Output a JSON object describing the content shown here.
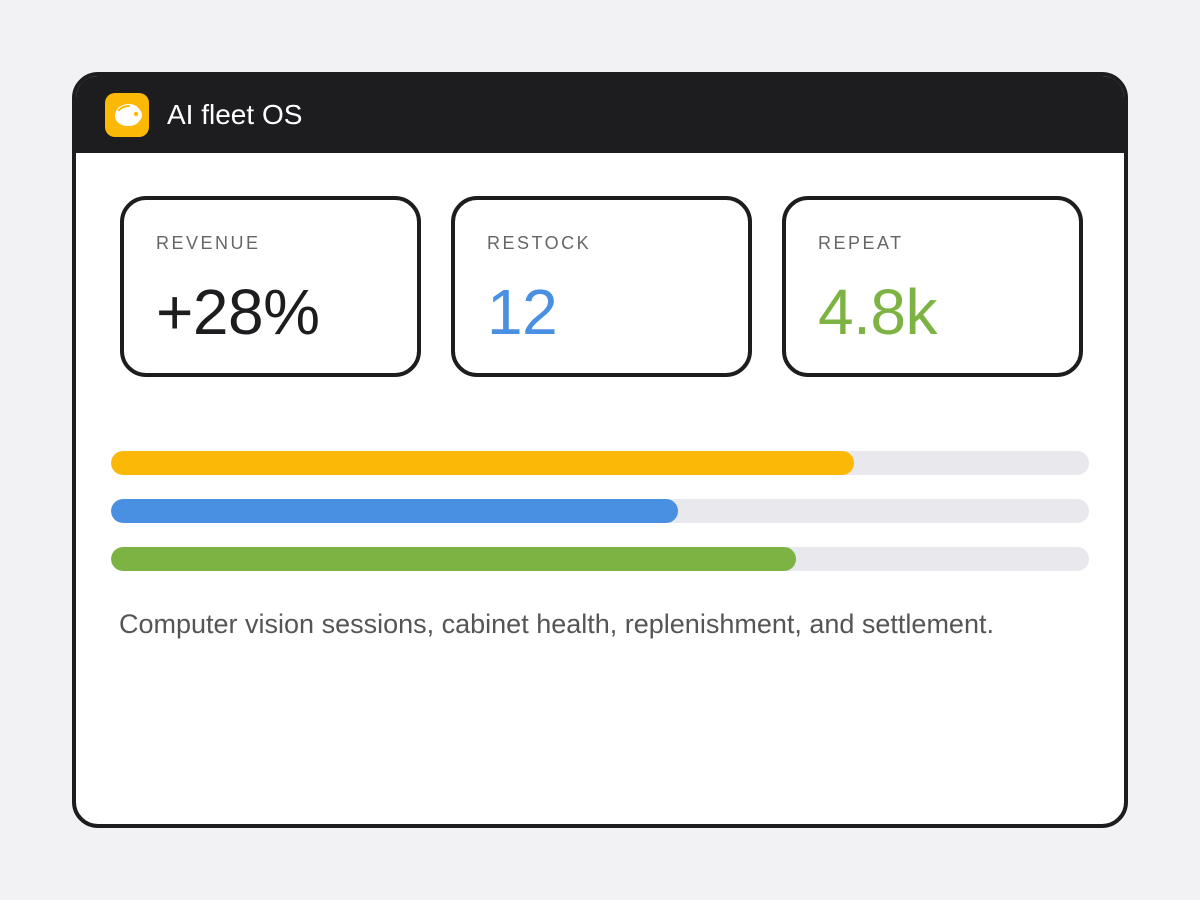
{
  "app": {
    "title": "AI fleet OS",
    "logo_icon": "robot-head-icon",
    "accent_color": "#fbb806"
  },
  "metrics": [
    {
      "label": "REVENUE",
      "value": "+28%",
      "color": "#1d1d20"
    },
    {
      "label": "RESTOCK",
      "value": "12",
      "color": "#4a90e2"
    },
    {
      "label": "REPEAT",
      "value": "4.8k",
      "color": "#7cb342"
    }
  ],
  "progress": [
    {
      "color": "#fbb806",
      "fraction": 0.76
    },
    {
      "color": "#4a90e2",
      "fraction": 0.58
    },
    {
      "color": "#7cb342",
      "fraction": 0.7
    }
  ],
  "description": "Computer vision sessions, cabinet health, replenishment, and settlement."
}
